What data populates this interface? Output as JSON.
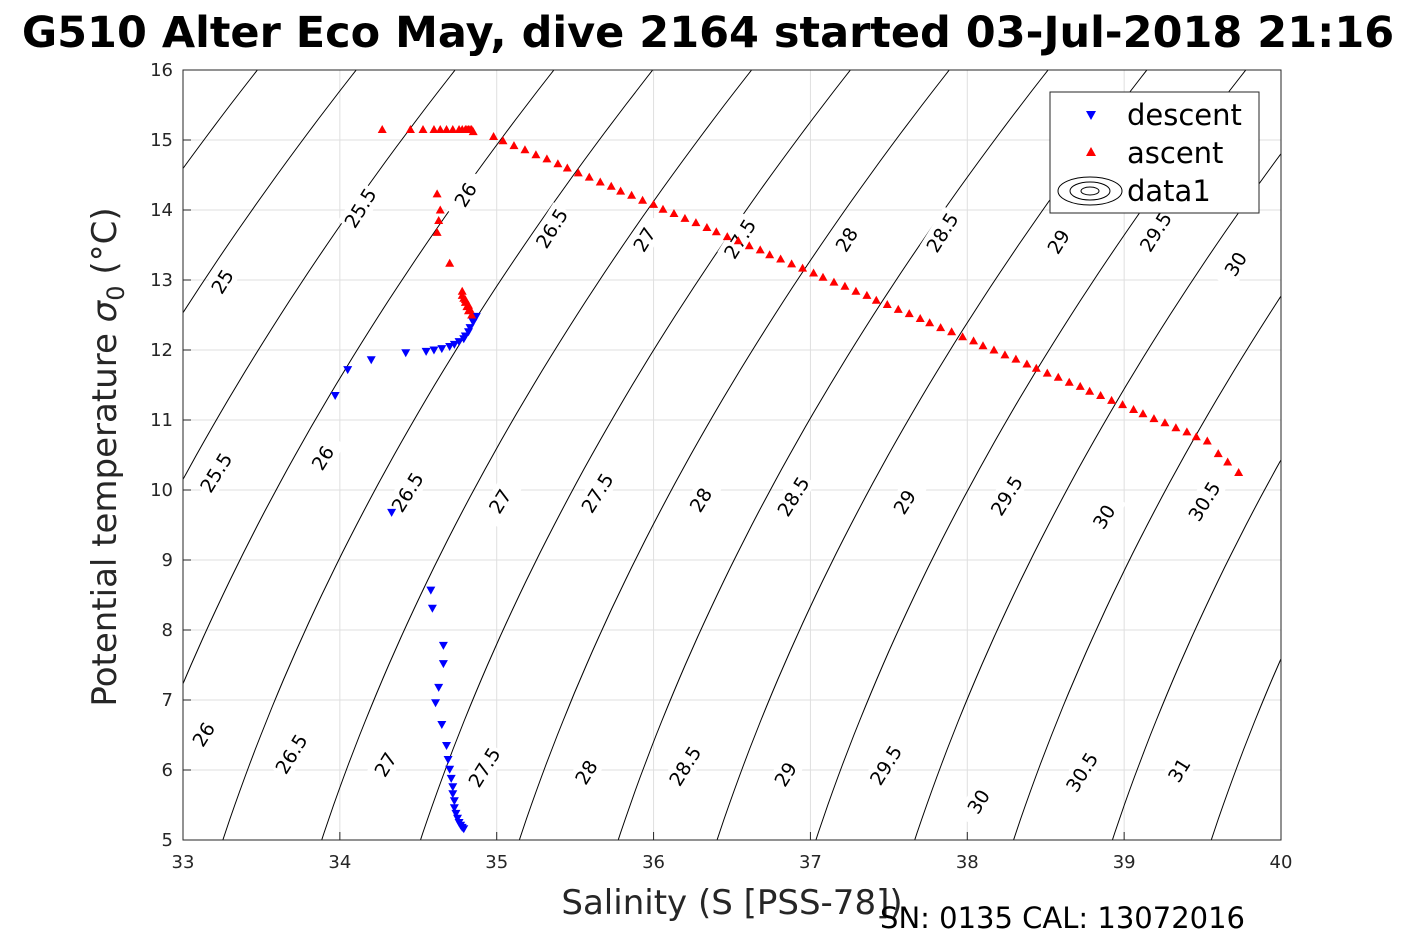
{
  "title": "G510 Alter Eco May, dive 2164 started 03-Jul-2018 21:16",
  "footer": "SN: 0135  CAL: 13072016",
  "chart_data": {
    "type": "scatter",
    "xlabel": "Salinity (S [PSS-78])",
    "ylabel_main": "Potential temperature ",
    "ylabel_sigma": "σ",
    "ylabel_sub": "0",
    "ylabel_unit": " (°C)",
    "xlim": [
      33,
      40
    ],
    "ylim": [
      5,
      16
    ],
    "x_ticks": [
      33,
      34,
      35,
      36,
      37,
      38,
      39,
      40
    ],
    "y_ticks": [
      5,
      6,
      7,
      8,
      9,
      10,
      11,
      12,
      13,
      14,
      15,
      16
    ],
    "grid": true,
    "legend_placement": "top-right",
    "legend": [
      "descent",
      "ascent",
      "data1"
    ],
    "colors": {
      "descent": "#0000ff",
      "ascent": "#ff0000",
      "contour": "#000000",
      "grid": "#dfdfdf"
    },
    "contour_labels": [
      {
        "text": "25",
        "s": 33.25,
        "t": 12.98
      },
      {
        "text": "25.5",
        "s": 34.13,
        "t": 14.03
      },
      {
        "text": "26",
        "s": 34.8,
        "t": 14.22
      },
      {
        "text": "26.5",
        "s": 35.35,
        "t": 13.74
      },
      {
        "text": "27",
        "s": 35.94,
        "t": 13.58
      },
      {
        "text": "27.5",
        "s": 36.55,
        "t": 13.59
      },
      {
        "text": "28",
        "s": 37.23,
        "t": 13.58
      },
      {
        "text": "28.5",
        "s": 37.84,
        "t": 13.68
      },
      {
        "text": "29",
        "s": 38.58,
        "t": 13.55
      },
      {
        "text": "29.5",
        "s": 39.2,
        "t": 13.69
      },
      {
        "text": "30",
        "s": 39.71,
        "t": 13.23
      },
      {
        "text": "25.5",
        "s": 33.21,
        "t": 10.25
      },
      {
        "text": "26",
        "s": 33.89,
        "t": 10.46
      },
      {
        "text": "26.5",
        "s": 34.43,
        "t": 9.97
      },
      {
        "text": "27",
        "s": 35.02,
        "t": 9.84
      },
      {
        "text": "27.5",
        "s": 35.64,
        "t": 9.96
      },
      {
        "text": "28",
        "s": 36.3,
        "t": 9.86
      },
      {
        "text": "28.5",
        "s": 36.89,
        "t": 9.91
      },
      {
        "text": "29",
        "s": 37.6,
        "t": 9.83
      },
      {
        "text": "29.5",
        "s": 38.25,
        "t": 9.92
      },
      {
        "text": "30",
        "s": 38.87,
        "t": 9.62
      },
      {
        "text": "30.5",
        "s": 39.51,
        "t": 9.84
      },
      {
        "text": "26",
        "s": 33.13,
        "t": 6.51
      },
      {
        "text": "26.5",
        "s": 33.69,
        "t": 6.23
      },
      {
        "text": "27",
        "s": 34.29,
        "t": 6.08
      },
      {
        "text": "27.5",
        "s": 34.92,
        "t": 6.04
      },
      {
        "text": "28",
        "s": 35.57,
        "t": 5.97
      },
      {
        "text": "28.5",
        "s": 36.2,
        "t": 6.06
      },
      {
        "text": "29",
        "s": 36.84,
        "t": 5.94
      },
      {
        "text": "29.5",
        "s": 37.48,
        "t": 6.07
      },
      {
        "text": "30",
        "s": 38.07,
        "t": 5.55
      },
      {
        "text": "30.5",
        "s": 38.73,
        "t": 5.97
      },
      {
        "text": "31",
        "s": 39.35,
        "t": 6.0
      }
    ],
    "series": [
      {
        "name": "descent",
        "marker": "triangle-down",
        "color": "#0000ff",
        "x": [
          34.87,
          34.85,
          34.83,
          34.82,
          34.8,
          34.79,
          34.76,
          34.73,
          34.7,
          34.65,
          34.6,
          34.55,
          34.42,
          34.2,
          34.05,
          33.97,
          34.33,
          34.58,
          34.59,
          34.66,
          34.66,
          34.63,
          34.61,
          34.65,
          34.68,
          34.69,
          34.7,
          34.71,
          34.72,
          34.72,
          34.73,
          34.73,
          34.74,
          34.75,
          34.76,
          34.77,
          34.78,
          34.79
        ],
        "y": [
          12.48,
          12.4,
          12.32,
          12.26,
          12.2,
          12.16,
          12.12,
          12.08,
          12.05,
          12.02,
          12.0,
          11.98,
          11.96,
          11.86,
          11.72,
          11.35,
          9.68,
          8.57,
          8.31,
          7.78,
          7.52,
          7.18,
          6.96,
          6.65,
          6.35,
          6.15,
          6.01,
          5.88,
          5.76,
          5.66,
          5.56,
          5.46,
          5.38,
          5.31,
          5.25,
          5.21,
          5.18,
          5.16
        ]
      },
      {
        "name": "ascent",
        "marker": "triangle-up",
        "color": "#ff0000",
        "x": [
          34.62,
          34.64,
          34.63,
          34.62,
          34.7,
          34.78,
          34.79,
          34.8,
          34.81,
          34.82,
          34.84,
          34.83,
          34.82,
          34.8,
          34.78,
          34.27,
          34.45,
          34.53,
          34.6,
          34.64,
          34.68,
          34.72,
          34.76,
          34.78,
          34.8,
          34.81,
          34.82,
          34.83,
          34.84,
          34.85,
          34.98,
          35.04,
          35.11,
          35.18,
          35.25,
          35.32,
          35.39,
          35.45,
          35.52,
          35.59,
          35.66,
          35.73,
          35.79,
          35.86,
          35.93,
          36.0,
          36.06,
          36.13,
          36.2,
          36.27,
          36.34,
          36.4,
          36.47,
          36.54,
          36.61,
          36.68,
          36.74,
          36.81,
          36.88,
          36.95,
          37.02,
          37.08,
          37.15,
          37.22,
          37.29,
          37.36,
          37.42,
          37.49,
          37.56,
          37.63,
          37.7,
          37.76,
          37.83,
          37.9,
          37.97,
          38.04,
          38.1,
          38.17,
          38.24,
          38.31,
          38.38,
          38.44,
          38.51,
          38.58,
          38.65,
          38.72,
          38.78,
          38.85,
          38.92,
          38.99,
          39.06,
          39.12,
          39.19,
          39.26,
          39.33,
          39.4,
          39.46,
          39.53,
          39.6,
          39.66,
          39.73
        ],
        "y": [
          14.23,
          14.0,
          13.85,
          13.68,
          13.24,
          12.84,
          12.74,
          12.68,
          12.62,
          12.56,
          12.5,
          12.58,
          12.64,
          12.72,
          12.78,
          15.15,
          15.15,
          15.15,
          15.15,
          15.15,
          15.15,
          15.15,
          15.15,
          15.15,
          15.15,
          15.15,
          15.15,
          15.15,
          15.15,
          15.12,
          15.05,
          14.99,
          14.92,
          14.86,
          14.79,
          14.73,
          14.66,
          14.6,
          14.53,
          14.47,
          14.4,
          14.34,
          14.27,
          14.21,
          14.14,
          14.08,
          14.01,
          13.95,
          13.88,
          13.82,
          13.75,
          13.69,
          13.62,
          13.56,
          13.49,
          13.43,
          13.36,
          13.3,
          13.23,
          13.17,
          13.1,
          13.04,
          12.97,
          12.91,
          12.84,
          12.78,
          12.71,
          12.65,
          12.58,
          12.52,
          12.45,
          12.39,
          12.32,
          12.26,
          12.19,
          12.13,
          12.06,
          12.0,
          11.93,
          11.87,
          11.8,
          11.74,
          11.67,
          11.61,
          11.54,
          11.48,
          11.41,
          11.35,
          11.28,
          11.22,
          11.15,
          11.09,
          11.02,
          10.96,
          10.89,
          10.83,
          10.76,
          10.7,
          10.52,
          10.4,
          10.25
        ]
      }
    ]
  }
}
